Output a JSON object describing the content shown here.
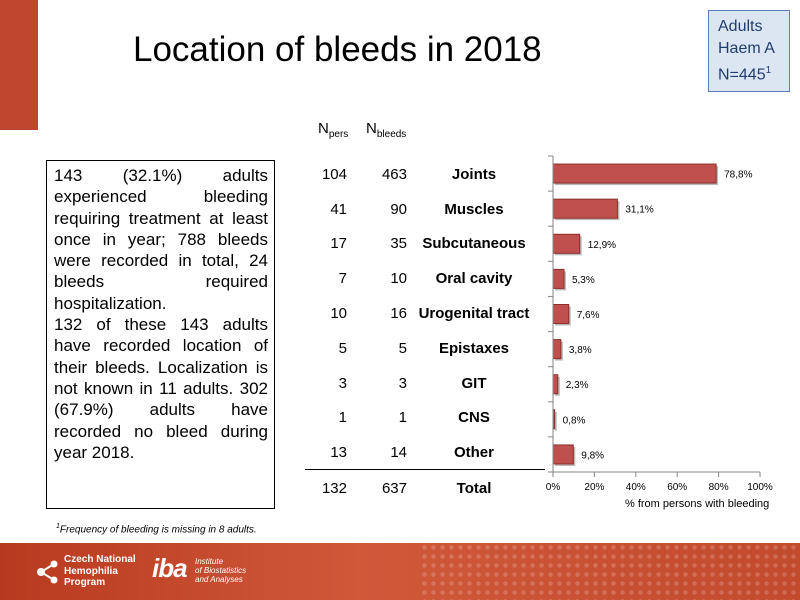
{
  "slide": {
    "title": "Location of bleeds in 2018",
    "info_box": {
      "line1": "Adults",
      "line2": "Haem A",
      "line3_prefix": "N=445",
      "line3_sup": "1"
    },
    "text_box": {
      "para1": "143 (32.1%) adults experienced bleeding requiring treatment at least once in year; 788 bleeds were recorded in total, 24 bleeds required hospitalization.",
      "para2": "132 of these 143 adults have recorded location of their bleeds. Localization is not known in 11 adults. 302 (67.9%) adults have recorded no bleed during year 2018."
    },
    "footnote": {
      "sup": "1",
      "text": "Frequency of bleeding is missing in 8 adults."
    },
    "table_headers": {
      "npers_main": "N",
      "npers_sub": "pers",
      "nbleeds_main": "N",
      "nbleeds_sub": "bleeds"
    },
    "rows": [
      {
        "npers": "104",
        "nbleeds": "463",
        "location": "Joints"
      },
      {
        "npers": "41",
        "nbleeds": "90",
        "location": "Muscles"
      },
      {
        "npers": "17",
        "nbleeds": "35",
        "location": "Subcutaneous"
      },
      {
        "npers": "7",
        "nbleeds": "10",
        "location": "Oral cavity"
      },
      {
        "npers": "10",
        "nbleeds": "16",
        "location": "Urogenital tract"
      },
      {
        "npers": "5",
        "nbleeds": "5",
        "location": "Epistaxes"
      },
      {
        "npers": "3",
        "nbleeds": "3",
        "location": "GIT"
      },
      {
        "npers": "1",
        "nbleeds": "1",
        "location": "CNS"
      },
      {
        "npers": "13",
        "nbleeds": "14",
        "location": "Other"
      }
    ],
    "total_row": {
      "npers": "132",
      "nbleeds": "637",
      "location": "Total"
    },
    "footer": {
      "logo1_lines": [
        "Czech National",
        "Hemophilia",
        "Program"
      ],
      "logo2_mark": "iba",
      "logo2_lines": [
        "Institute",
        "of Biostatistics",
        "and Analyses"
      ]
    }
  },
  "chart_data": {
    "type": "bar",
    "orientation": "horizontal",
    "categories": [
      "Joints",
      "Muscles",
      "Subcutaneous",
      "Oral cavity",
      "Urogenital tract",
      "Epistaxes",
      "GIT",
      "CNS",
      "Other"
    ],
    "values": [
      78.8,
      31.1,
      12.9,
      5.3,
      7.6,
      3.8,
      2.3,
      0.8,
      9.8
    ],
    "value_labels": [
      "78,8%",
      "31,1%",
      "12,9%",
      "5,3%",
      "7,6%",
      "3,8%",
      "2,3%",
      "0,8%",
      "9,8%"
    ],
    "xlabel": "% from persons with bleeding",
    "xlim": [
      0,
      100
    ],
    "xticks": [
      "0%",
      "20%",
      "40%",
      "60%",
      "80%",
      "100%"
    ],
    "bar_color": "#c0504d",
    "grid": false
  },
  "colors": {
    "accent": "#c0462e",
    "info_border": "#5b7fb5",
    "info_fill": "#dce6f2"
  }
}
